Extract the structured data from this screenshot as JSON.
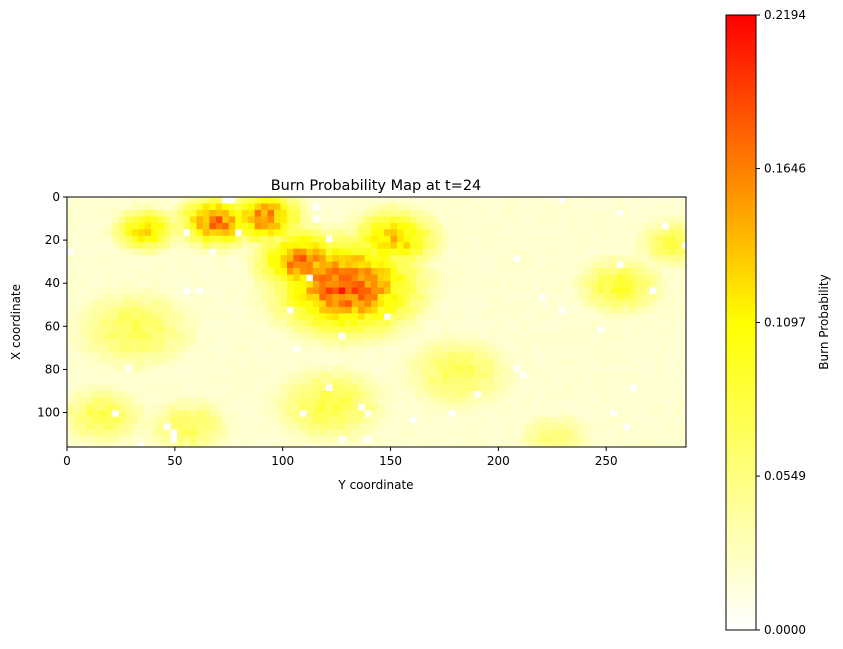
{
  "chart_data": {
    "type": "heatmap",
    "title": "Burn Probability Map at t=24",
    "xlabel": "Y coordinate",
    "ylabel": "X coordinate",
    "xlim": [
      0,
      287
    ],
    "ylim": [
      116,
      0
    ],
    "x_ticks": [
      0,
      50,
      100,
      150,
      200,
      250
    ],
    "y_ticks": [
      0,
      20,
      40,
      60,
      80,
      100
    ],
    "colormap": "autumn_r",
    "colors": {
      "low": "#ffffff",
      "mid": "#ffff00",
      "high": "#ff0000"
    },
    "colorbar": {
      "label": "Burn Probability",
      "min": 0.0,
      "max": 0.2194,
      "ticks": [
        "0.0000",
        "0.0549",
        "0.1097",
        "0.1646",
        "0.2194"
      ]
    },
    "hotspots": [
      {
        "x": 128,
        "y": 40,
        "value": 0.185,
        "spread": 22
      },
      {
        "x": 108,
        "y": 28,
        "value": 0.17,
        "spread": 14
      },
      {
        "x": 68,
        "y": 10,
        "value": 0.165,
        "spread": 12
      },
      {
        "x": 90,
        "y": 8,
        "value": 0.16,
        "spread": 12
      },
      {
        "x": 35,
        "y": 14,
        "value": 0.125,
        "spread": 10
      },
      {
        "x": 150,
        "y": 18,
        "value": 0.13,
        "spread": 14
      },
      {
        "x": 255,
        "y": 40,
        "value": 0.085,
        "spread": 14
      },
      {
        "x": 30,
        "y": 60,
        "value": 0.07,
        "spread": 20
      },
      {
        "x": 15,
        "y": 100,
        "value": 0.075,
        "spread": 14
      },
      {
        "x": 120,
        "y": 95,
        "value": 0.08,
        "spread": 18
      },
      {
        "x": 180,
        "y": 80,
        "value": 0.07,
        "spread": 18
      },
      {
        "x": 225,
        "y": 110,
        "value": 0.06,
        "spread": 12
      },
      {
        "x": 280,
        "y": 20,
        "value": 0.075,
        "spread": 12
      },
      {
        "x": 55,
        "y": 105,
        "value": 0.07,
        "spread": 14
      }
    ]
  }
}
